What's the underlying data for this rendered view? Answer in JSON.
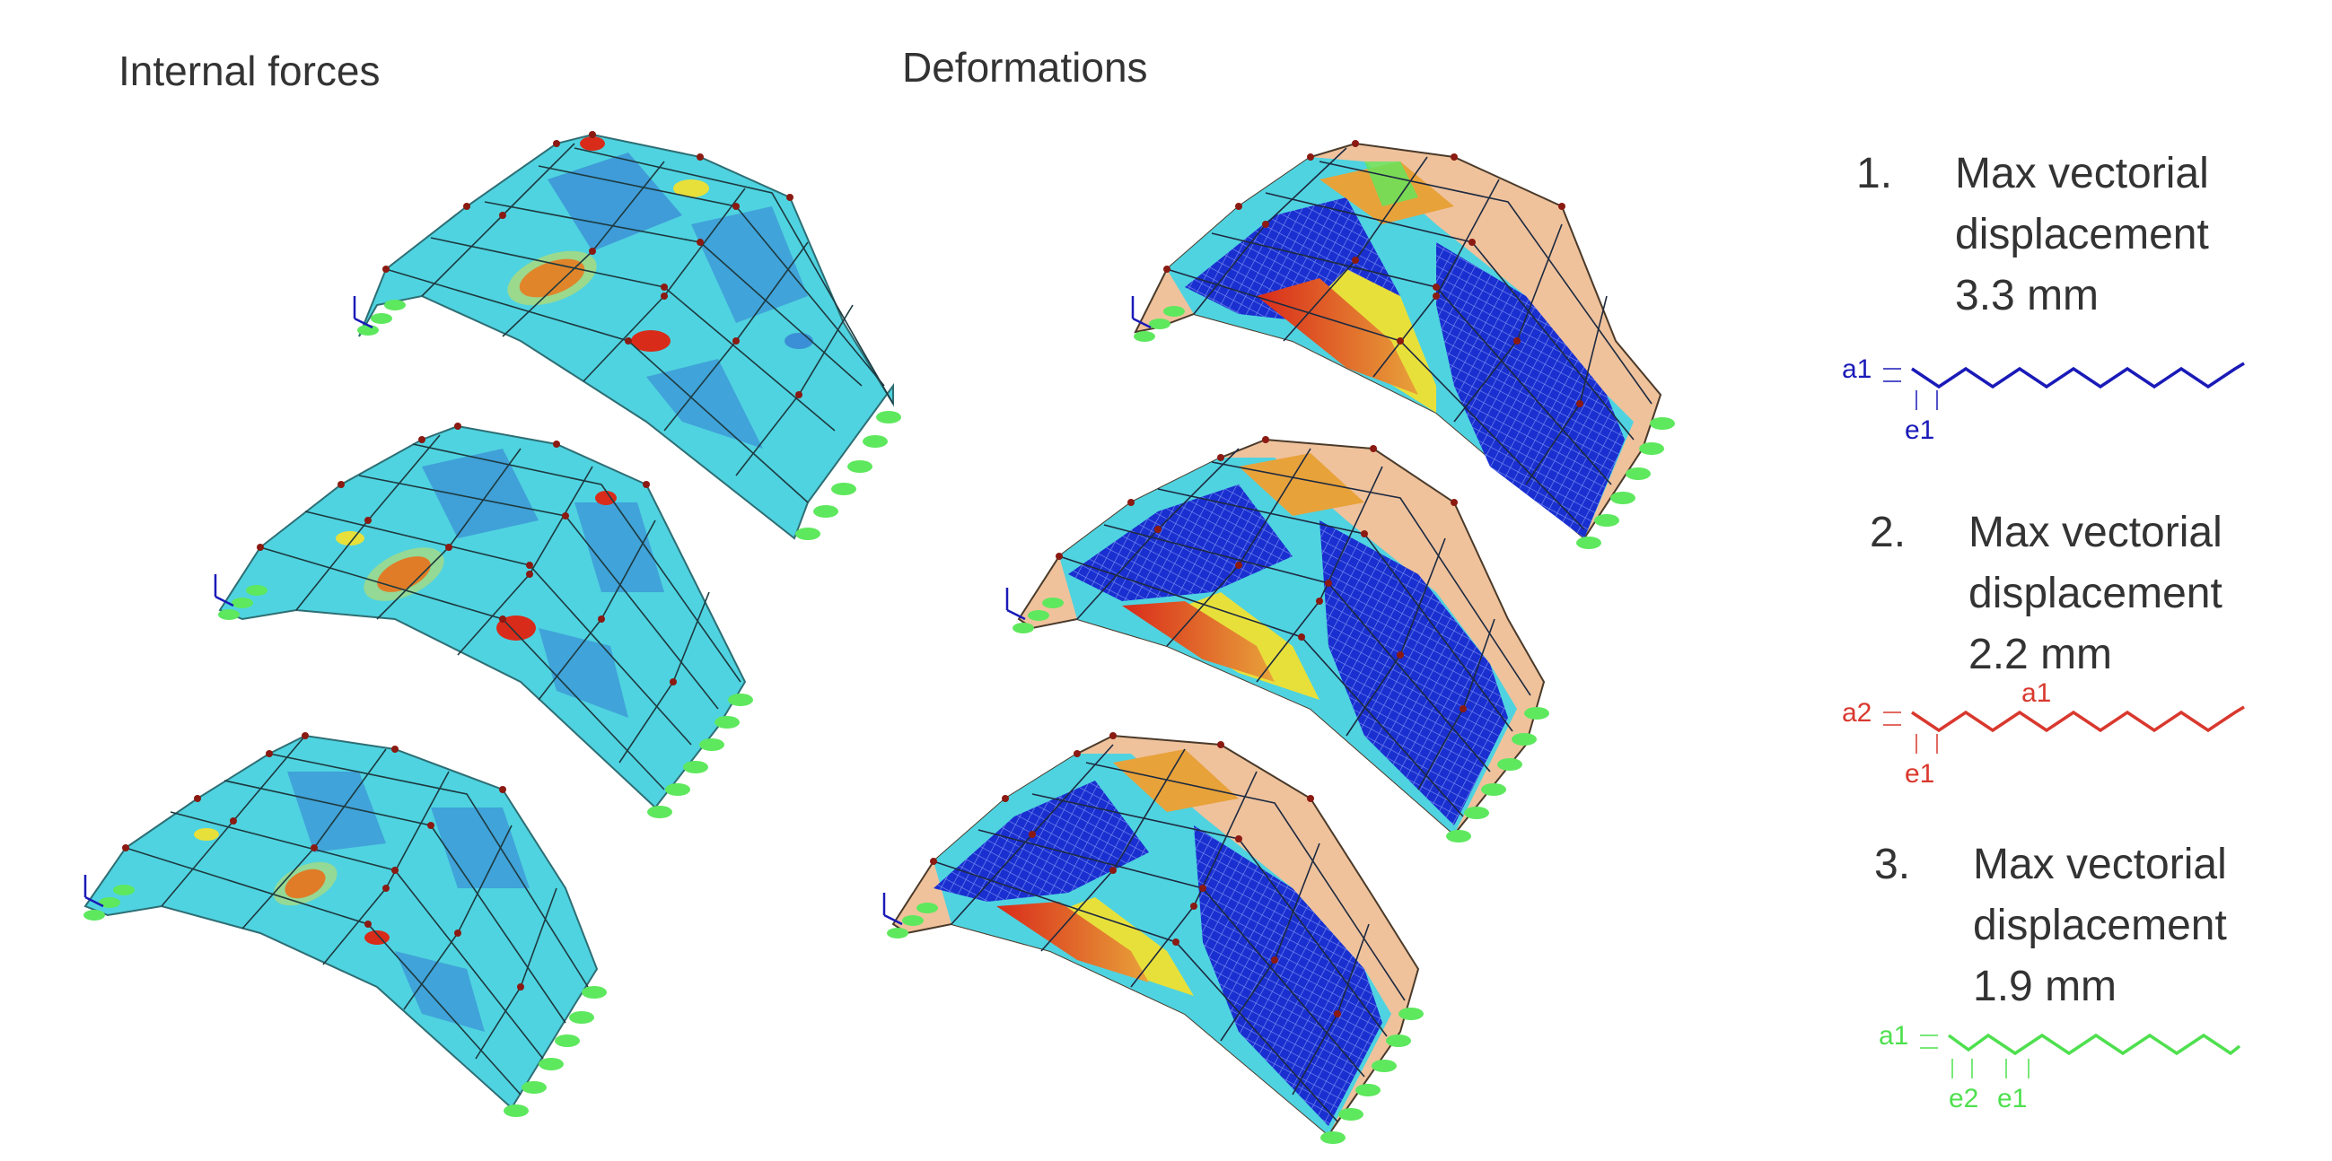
{
  "headings": {
    "internal_forces": "Internal forces",
    "deformations": "Deformations"
  },
  "cases": [
    {
      "number": "1.",
      "line1": "Max vectorial",
      "line2": "displacement",
      "line3": "3.3 mm",
      "color": "#1a1ab8",
      "profile_labels": [
        "a1",
        "e1"
      ]
    },
    {
      "number": "2.",
      "line1": "Max vectorial",
      "line2": "displacement",
      "line3": "2.2 mm",
      "color": "#d9382e",
      "profile_labels": [
        "a2",
        "a1",
        "e1"
      ]
    },
    {
      "number": "3.",
      "line1": "Max vectorial",
      "line2": "displacement",
      "line3": "1.9 mm",
      "color": "#4ee04e",
      "profile_labels": [
        "a1",
        "e2",
        "e1"
      ]
    }
  ],
  "colors": {
    "forces_base": "#4fd3e0",
    "forces_mid": "#3b8fd6",
    "deform_blue": "#1a2fd0",
    "deform_peach": "#efc29c",
    "hot_red": "#d92b1a",
    "warm_yellow": "#e8e03a",
    "green_support": "#5ee85e",
    "node_red": "#8b1a12"
  }
}
